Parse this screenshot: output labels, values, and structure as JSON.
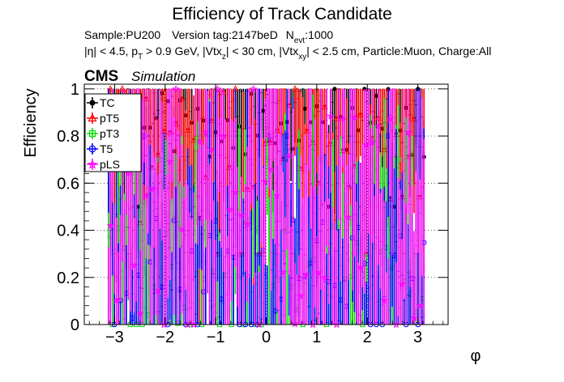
{
  "chart_data": {
    "type": "scatter",
    "title": "Efficiency of Track Candidate",
    "subtitle": {
      "line1": {
        "sample": "Sample:PU200",
        "version": "Version tag:2147beD",
        "nevt_pre": "N",
        "nevt_sub": "evt",
        "nevt_post": ":1000"
      },
      "line2": {
        "a": "|η| < 4.5, p",
        "a_sub": "T",
        "b": " > 0.9 GeV, |Vtx",
        "b_sub": "z",
        "c": "| < 30 cm, |Vtx",
        "c_sub": "xy",
        "d": "| < 2.5 cm, Particle:Muon, Charge:All"
      }
    },
    "cms_label": "CMS",
    "cms_extra": "Simulation",
    "xlabel": "φ",
    "ylabel": "Efficiency",
    "xlim": [
      -3.6,
      3.6
    ],
    "ylim": [
      0,
      1.02
    ],
    "x_ticks": [
      -3,
      -2,
      -1,
      0,
      1,
      2,
      3
    ],
    "x_tick_labels": [
      "−3",
      "−2",
      "−1",
      "0",
      "1",
      "2",
      "3"
    ],
    "y_ticks": [
      0,
      0.2,
      0.4,
      0.6,
      0.8,
      1.0
    ],
    "y_tick_labels": [
      "0",
      "0.2",
      "0.4",
      "0.6",
      "0.8",
      "1"
    ],
    "grid": true,
    "legend_position": "top-left",
    "n_bins": 160,
    "phi_range": [
      -3.1416,
      3.1416
    ],
    "series": [
      {
        "name": "TC",
        "color": "#000000",
        "marker": "filled-circle",
        "efficiency_profile": {
          "base": 0.86,
          "spread": 0.15,
          "min": 0.5,
          "max": 1.0
        }
      },
      {
        "name": "pT5",
        "color": "#ff0000",
        "marker": "open-triangle",
        "efficiency_profile": {
          "base": 0.72,
          "spread": 0.3,
          "min": 0.3,
          "max": 1.0
        }
      },
      {
        "name": "pT3",
        "color": "#00dd00",
        "marker": "open-square",
        "efficiency_profile": {
          "base": 0.2,
          "spread": 0.3,
          "min": 0.0,
          "max": 0.7
        }
      },
      {
        "name": "T5",
        "color": "#0000ff",
        "marker": "open-circle",
        "efficiency_profile": {
          "base": 0.18,
          "spread": 0.3,
          "min": 0.0,
          "max": 0.8
        }
      },
      {
        "name": "pLS",
        "color": "#ff00ff",
        "marker": "open-star",
        "efficiency_profile": {
          "base": 0.45,
          "spread": 0.45,
          "min": 0.0,
          "max": 1.0
        }
      }
    ]
  }
}
